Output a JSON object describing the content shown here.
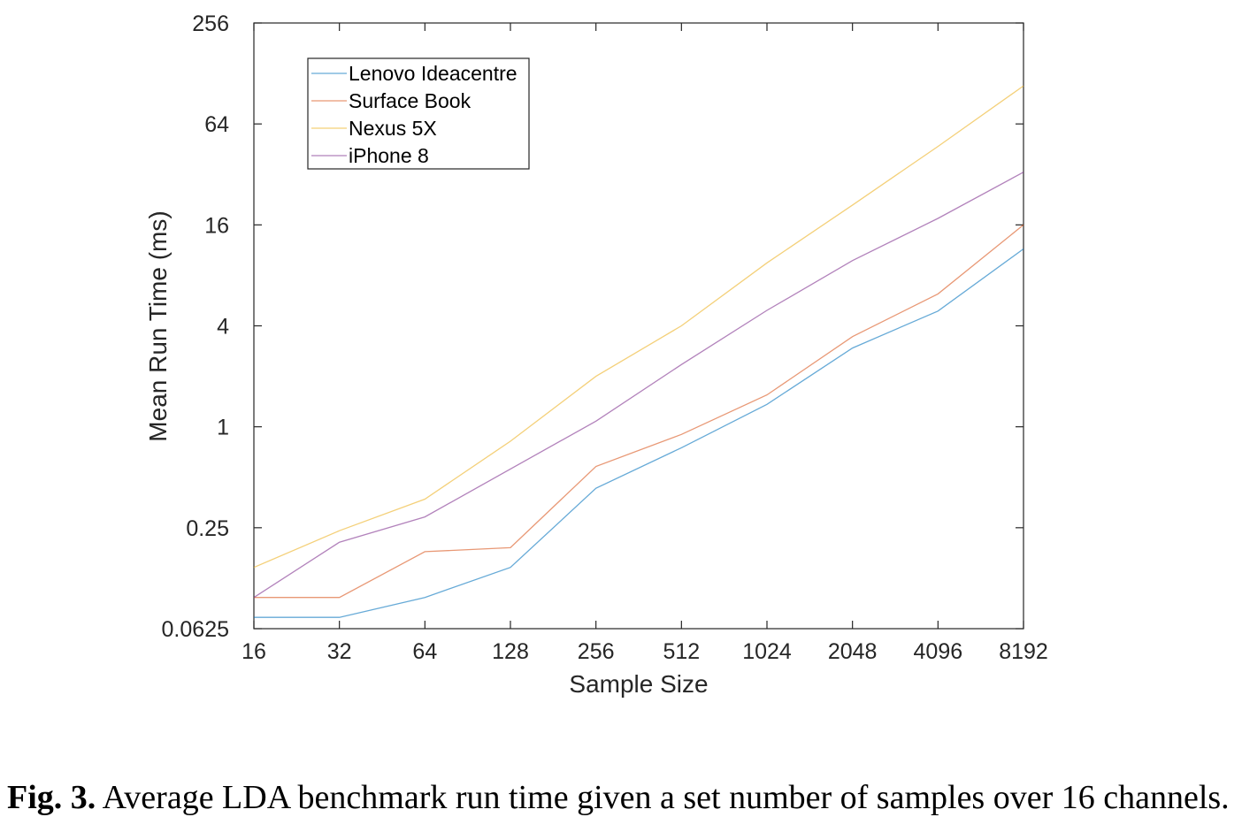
{
  "chart_data": {
    "type": "line",
    "xlabel": "Sample Size",
    "ylabel": "Mean Run Time (ms)",
    "x": [
      16,
      32,
      64,
      128,
      256,
      512,
      1024,
      2048,
      4096,
      8192
    ],
    "x_tick_labels": [
      "16",
      "32",
      "64",
      "128",
      "256",
      "512",
      "1024",
      "2048",
      "4096",
      "8192"
    ],
    "x_scale": "log2",
    "y_scale": "log2",
    "ylim": [
      0.0625,
      256
    ],
    "y_ticks": [
      0.0625,
      0.25,
      1,
      4,
      16,
      64,
      256
    ],
    "y_tick_labels": [
      "0.0625",
      "0.25",
      "1",
      "4",
      "16",
      "64",
      "256"
    ],
    "grid": false,
    "legend_position": "top-left",
    "series": [
      {
        "name": "Lenovo Ideacentre",
        "color": "#0072BD",
        "values": [
          0.073,
          0.073,
          0.096,
          0.145,
          0.43,
          0.75,
          1.36,
          2.95,
          4.9,
          11.5
        ]
      },
      {
        "name": "Surface Book",
        "color": "#D95319",
        "values": [
          0.096,
          0.096,
          0.18,
          0.19,
          0.58,
          0.9,
          1.55,
          3.45,
          6.2,
          16.0
        ]
      },
      {
        "name": "Nexus 5X",
        "color": "#EDB120",
        "values": [
          0.145,
          0.24,
          0.37,
          0.82,
          2.0,
          4.0,
          9.5,
          21.0,
          47.0,
          108.0
        ]
      },
      {
        "name": "iPhone 8",
        "color": "#7E2F8E",
        "values": [
          0.096,
          0.205,
          0.29,
          0.56,
          1.08,
          2.35,
          4.95,
          9.8,
          17.5,
          33.0
        ]
      }
    ]
  },
  "caption": {
    "label": "Fig. 3.",
    "text": " Average LDA benchmark run time given a set number of samples over 16 channels."
  }
}
